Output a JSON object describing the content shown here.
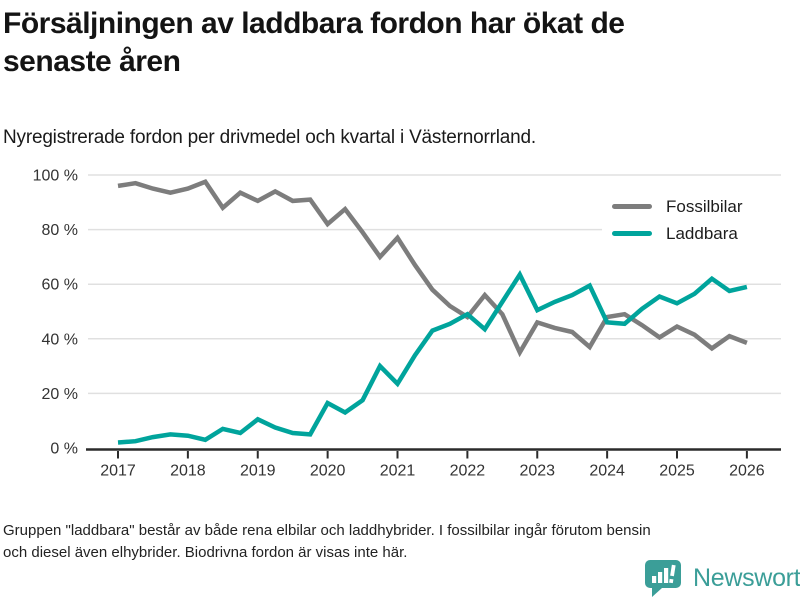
{
  "header": {
    "title_lines": [
      "Försäljningen av laddbara fordon har ökat de",
      "senaste åren"
    ],
    "subtitle": "Nyregistrerade fordon per drivmedel och kvartal i Västernorrland."
  },
  "footer": {
    "lines": [
      "Gruppen \"laddbara\" består av både rena elbilar och laddhybrider. I fossilbilar ingår förutom bensin",
      "och diesel även elhybrider. Biodrivna fordon är visas inte här."
    ],
    "brand": "Newsworthy"
  },
  "colors": {
    "fossil": "#7d7d7d",
    "laddbara": "#00a49c",
    "brand_teal": "#3b9e98",
    "grid": "#e0e0e0",
    "axis": "#2b2b2b",
    "text": "#141414",
    "axis_label": "#333333"
  },
  "chart_data": {
    "type": "line",
    "title": "Försäljningen av laddbara fordon har ökat de senaste åren",
    "subtitle": "Nyregistrerade fordon per drivmedel och kvartal i Västernorrland.",
    "x_unit": "quarter",
    "x_start": "2017-Q1",
    "x_end": "2026-Q1",
    "x_tick_labels": [
      "2017",
      "2018",
      "2019",
      "2020",
      "2021",
      "2022",
      "2023",
      "2024",
      "2025",
      "2026"
    ],
    "ylim": [
      0,
      100
    ],
    "yticks": [
      {
        "value": 0,
        "label": "0 %"
      },
      {
        "value": 20,
        "label": "20 %"
      },
      {
        "value": 40,
        "label": "40 %"
      },
      {
        "value": 60,
        "label": "60 %"
      },
      {
        "value": 80,
        "label": "80 %"
      },
      {
        "value": 100,
        "label": "100 %"
      }
    ],
    "grid": "horizontal",
    "legend_position": "upper-right",
    "series": [
      {
        "name": "Fossilbilar",
        "color": "#7d7d7d",
        "values": [
          96,
          97,
          95,
          93.5,
          95,
          97.5,
          88,
          93.5,
          90.5,
          94,
          90.5,
          91,
          82,
          87.5,
          79,
          70,
          77,
          67,
          58,
          52,
          48,
          56,
          49,
          35,
          46,
          44,
          42.5,
          37,
          48,
          49,
          45,
          40.5,
          44.5,
          41.5,
          36.5,
          41,
          38.5
        ]
      },
      {
        "name": "Laddbara",
        "color": "#00a49c",
        "values": [
          2,
          2.5,
          4,
          5,
          4.5,
          3,
          7,
          5.5,
          10.5,
          7.5,
          5.5,
          5,
          16.5,
          13,
          17.5,
          30,
          23.5,
          34,
          43,
          45.5,
          49,
          43.5,
          53.5,
          63.5,
          50.5,
          53.5,
          56,
          59.5,
          46,
          45.5,
          51,
          55.5,
          53,
          56.5,
          62,
          57.5,
          59
        ]
      }
    ]
  }
}
